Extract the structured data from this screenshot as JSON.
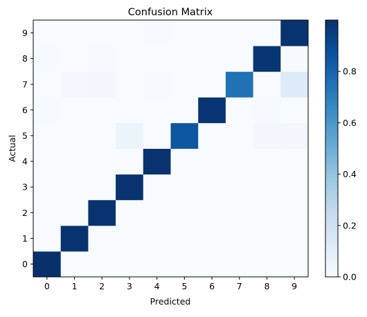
{
  "chart_data": {
    "type": "heatmap",
    "title": "Confusion Matrix",
    "xlabel": "Predicted",
    "ylabel": "Actual",
    "x_categories": [
      "0",
      "1",
      "2",
      "3",
      "4",
      "5",
      "6",
      "7",
      "8",
      "9"
    ],
    "y_categories": [
      "0",
      "1",
      "2",
      "3",
      "4",
      "5",
      "6",
      "7",
      "8",
      "9"
    ],
    "matrix": [
      [
        1.0,
        0.0,
        0.0,
        0.0,
        0.0,
        0.0,
        0.0,
        0.0,
        0.0,
        0.0
      ],
      [
        0.0,
        0.99,
        0.0,
        0.0,
        0.0,
        0.0,
        0.0,
        0.0,
        0.0,
        0.0
      ],
      [
        0.0,
        0.0,
        0.99,
        0.0,
        0.0,
        0.0,
        0.0,
        0.0,
        0.0,
        0.0
      ],
      [
        0.0,
        0.0,
        0.0,
        0.99,
        0.0,
        0.0,
        0.0,
        0.0,
        0.0,
        0.0
      ],
      [
        0.0,
        0.0,
        0.0,
        0.0,
        0.99,
        0.0,
        0.0,
        0.0,
        0.0,
        0.0
      ],
      [
        0.0,
        0.0,
        0.0,
        0.06,
        0.0,
        0.85,
        0.0,
        0.0,
        0.03,
        0.03
      ],
      [
        0.01,
        0.0,
        0.0,
        0.0,
        0.0,
        0.0,
        0.98,
        0.0,
        0.01,
        0.0
      ],
      [
        0.0,
        0.02,
        0.03,
        0.0,
        0.01,
        0.0,
        0.0,
        0.75,
        0.0,
        0.13
      ],
      [
        0.01,
        0.0,
        0.01,
        0.0,
        0.0,
        0.0,
        0.0,
        0.0,
        0.98,
        0.01
      ],
      [
        0.0,
        0.0,
        0.0,
        0.0,
        0.01,
        0.0,
        0.0,
        0.0,
        0.0,
        0.99
      ]
    ],
    "colormap": "Blues",
    "colorbar": {
      "range": [
        0.0,
        1.0
      ],
      "ticks": [
        "0.0",
        "0.2",
        "0.4",
        "0.6",
        "0.8"
      ]
    },
    "grid": false
  }
}
